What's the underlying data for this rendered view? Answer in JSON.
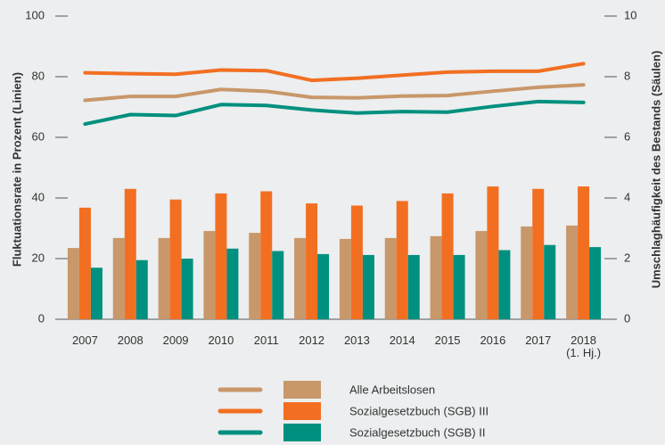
{
  "chart_data": {
    "type": "bar-line",
    "categories": [
      "2007",
      "2008",
      "2009",
      "2010",
      "2011",
      "2012",
      "2013",
      "2014",
      "2015",
      "2016",
      "2017",
      "2018\n(1. Hj.)"
    ],
    "ylabel": "Fluktuationsrate in Prozent (Linien)",
    "y2label": "Umschlaghäufigkeit des Bestands (Säulen)",
    "ylim": [
      0,
      100
    ],
    "yticks": [
      0,
      20,
      40,
      60,
      80,
      100
    ],
    "y2lim": [
      0,
      10
    ],
    "y2ticks": [
      0,
      2,
      4,
      6,
      8,
      10
    ],
    "series": [
      {
        "name": "Alle Arbeitslosen",
        "color": "#c8976a",
        "line_values": [
          72.2,
          73.5,
          73.5,
          75.8,
          75.2,
          73.2,
          73.0,
          73.6,
          73.8,
          75.2,
          76.5,
          77.3
        ],
        "bar_values": [
          2.35,
          2.68,
          2.68,
          2.91,
          2.85,
          2.68,
          2.65,
          2.68,
          2.74,
          2.91,
          3.06,
          3.09
        ]
      },
      {
        "name": "Sozialgesetzbuch (SGB) III",
        "color": "#f26f22",
        "line_values": [
          81.3,
          81.0,
          80.8,
          82.2,
          82.0,
          78.8,
          79.5,
          80.5,
          81.5,
          81.8,
          81.8,
          84.3
        ],
        "bar_values": [
          3.68,
          4.3,
          3.95,
          4.15,
          4.22,
          3.82,
          3.75,
          3.9,
          4.15,
          4.38,
          4.3,
          4.38
        ]
      },
      {
        "name": "Sozialgesetzbuch (SGB) II",
        "color": "#00907f",
        "line_values": [
          64.4,
          67.5,
          67.2,
          70.8,
          70.5,
          69.0,
          68.0,
          68.5,
          68.3,
          70.2,
          71.8,
          71.5
        ],
        "bar_values": [
          1.7,
          1.95,
          2.0,
          2.33,
          2.25,
          2.15,
          2.12,
          2.12,
          2.12,
          2.28,
          2.45,
          2.38
        ]
      }
    ]
  }
}
